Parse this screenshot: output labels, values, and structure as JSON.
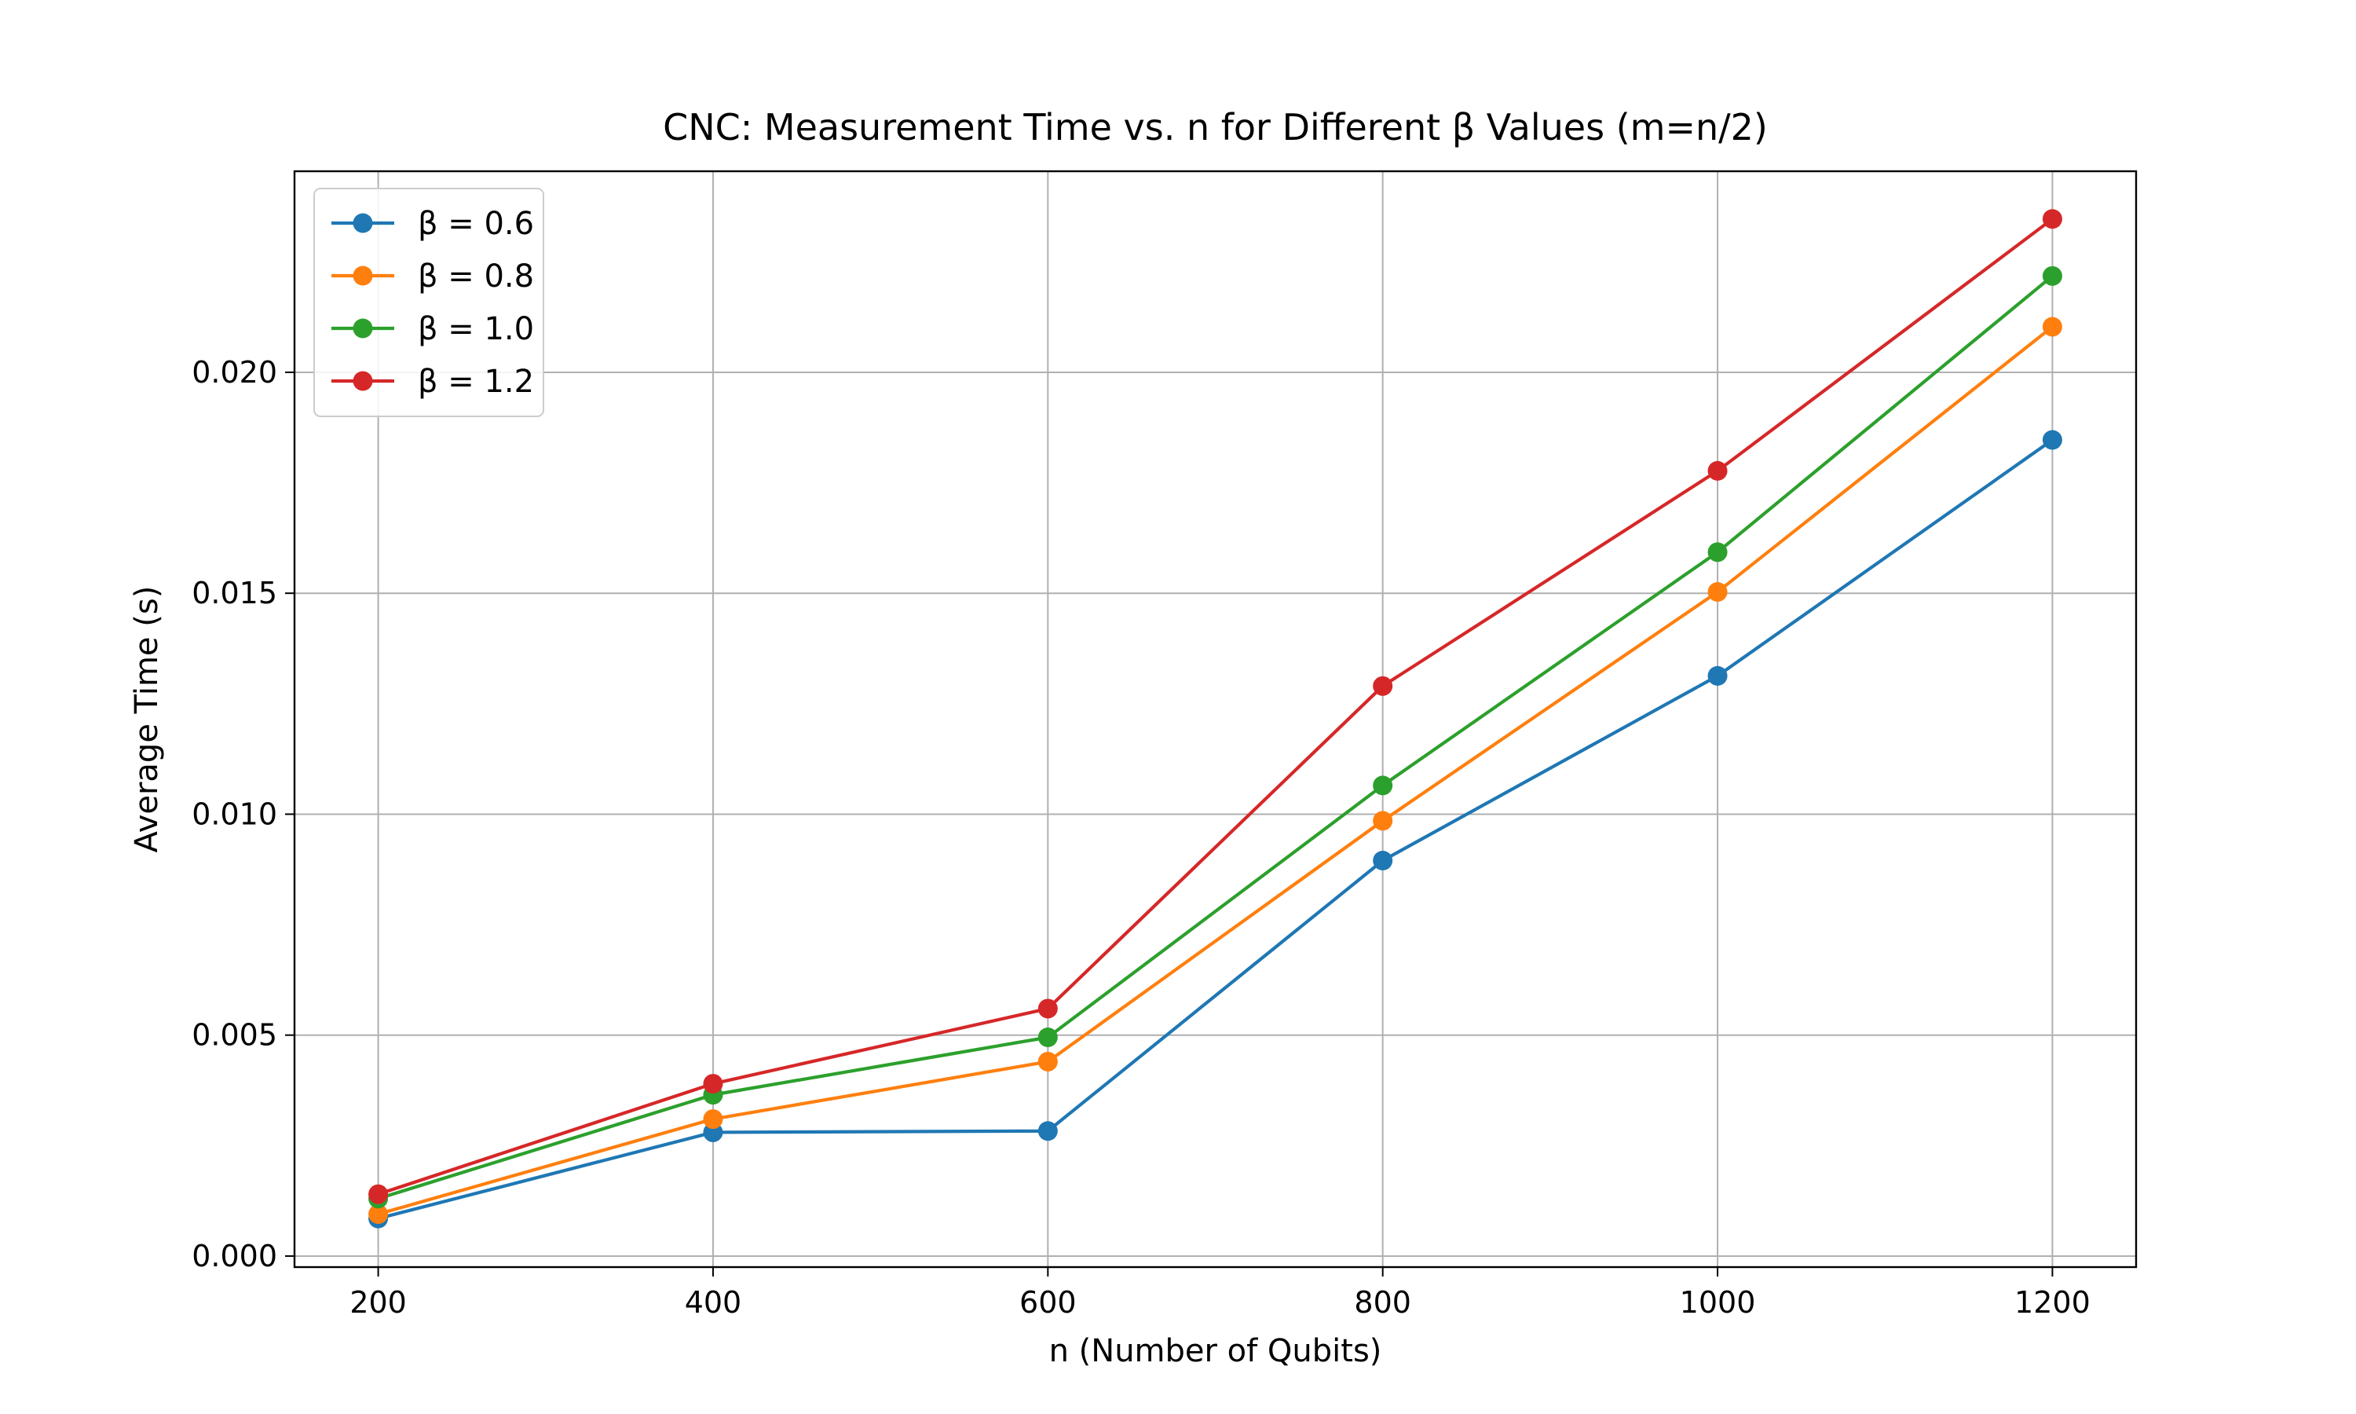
{
  "chart_data": {
    "type": "line",
    "title": "CNC: Measurement Time vs. n for Different β Values (m=n/2)",
    "xlabel": "n (Number of Qubits)",
    "ylabel": "Average Time (s)",
    "x": [
      200,
      400,
      600,
      800,
      1000,
      1200
    ],
    "xlim": [
      150,
      1250
    ],
    "ylim": [
      -0.00025,
      0.02455
    ],
    "xticks": [
      200,
      400,
      600,
      800,
      1000,
      1200
    ],
    "xtick_labels": [
      "200",
      "400",
      "600",
      "800",
      "1000",
      "1200"
    ],
    "yticks": [
      0.0,
      0.005,
      0.01,
      0.015,
      0.02
    ],
    "ytick_labels": [
      "0.000",
      "0.005",
      "0.010",
      "0.015",
      "0.020"
    ],
    "grid": true,
    "legend_position": "top-left",
    "series": [
      {
        "name": "β = 0.6",
        "color": "#1f77b4",
        "values": [
          0.00085,
          0.0028,
          0.00283,
          0.00895,
          0.01313,
          0.01847
        ]
      },
      {
        "name": "β = 0.8",
        "color": "#ff7f0e",
        "values": [
          0.00095,
          0.0031,
          0.0044,
          0.00985,
          0.01503,
          0.02103
        ]
      },
      {
        "name": "β = 1.0",
        "color": "#2ca02c",
        "values": [
          0.0013,
          0.00365,
          0.00495,
          0.01065,
          0.01593,
          0.02218
        ]
      },
      {
        "name": "β = 1.2",
        "color": "#d62728",
        "values": [
          0.0014,
          0.0039,
          0.0056,
          0.0129,
          0.01777,
          0.02347
        ]
      }
    ]
  }
}
